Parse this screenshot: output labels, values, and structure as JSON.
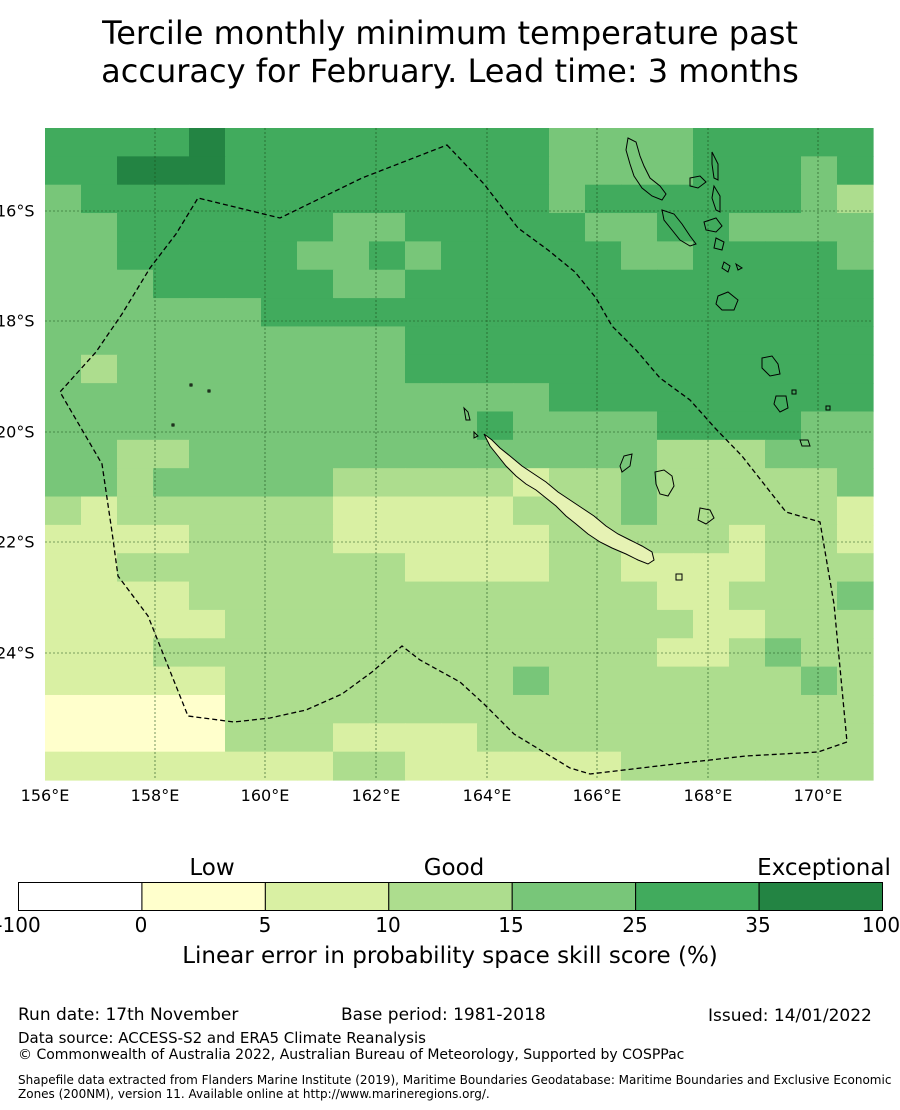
{
  "title_line1": "Tercile monthly minimum temperature past",
  "title_line2": "accuracy for February. Lead time: 3 months",
  "lon_labels": [
    "156°E",
    "158°E",
    "160°E",
    "162°E",
    "164°E",
    "166°E",
    "168°E",
    "170°E"
  ],
  "lat_labels": [
    "16°S",
    "18°S",
    "20°S",
    "22°S",
    "24°S"
  ],
  "colorbar": {
    "categories": [
      "Low",
      "Good",
      "Exceptional"
    ],
    "ticks": [
      "-100",
      "0",
      "5",
      "10",
      "15",
      "25",
      "35",
      "100"
    ],
    "colors": [
      "#ffffff",
      "#ffffcc",
      "#d9f0a3",
      "#addd8e",
      "#78c679",
      "#41ab5d",
      "#238443"
    ],
    "title": "Linear error in probability space skill score (%)"
  },
  "map": {
    "legend_ramp": [
      "#ffffcc",
      "#d9f0a3",
      "#addd8e",
      "#78c679",
      "#41ab5d",
      "#238443"
    ],
    "grid_rows": [
      "44445444444444333344444",
      "44555444444444333344434",
      "34444444444444344444432",
      "33444444334444433443333",
      "33444443343444443344443",
      "33344444334444444444444",
      "33333344444444444444444",
      "33333333334444444444444",
      "32333333334444444444444",
      "33333333333333444444444",
      "33333333333343333444433",
      "33223333333333333222333",
      "33233333222221223222223",
      "21222222111112223222221",
      "11112222111111222221221",
      "11222222221111221111222",
      "11112222222222222112223",
      "11111222222222222211222",
      "11122222222222222112322",
      "11111222222223222222232",
      "00000222222222222222222",
      "00000222111122222222222",
      "11111111221111112222222"
    ]
  },
  "footer": {
    "run_date": "Run date: 17th November",
    "base_period": "Base period: 1981-2018",
    "issued": "Issued: 14/01/2022",
    "data_source": "Data source: ACCESS-S2 and ERA5 Climate Reanalysis",
    "copyright": "© Commonwealth of Australia 2022, Australian Bureau of Meteorology, Supported by COSPPac",
    "shapefile_line1": "Shapefile data extracted from Flanders Marine Institute (2019), Maritime Boundaries Geodatabase: Maritime Boundaries and Exclusive Economic",
    "shapefile_line2": "Zones (200NM), version 11. Available online at http://www.marineregions.org/."
  }
}
